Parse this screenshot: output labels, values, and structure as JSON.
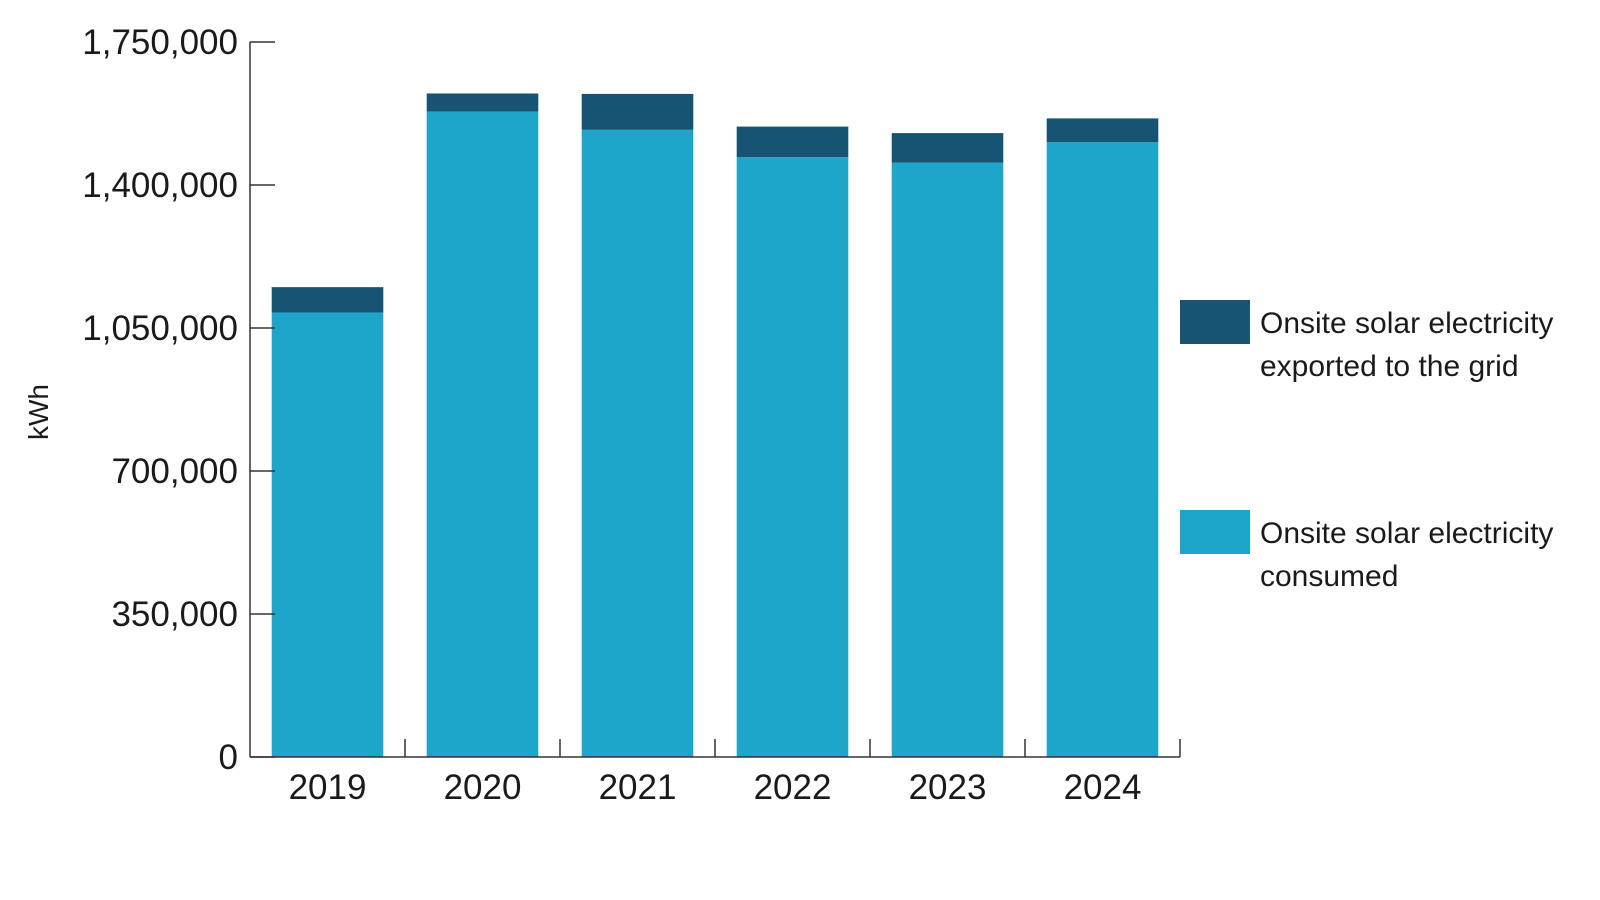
{
  "chart_data": {
    "type": "bar",
    "stacked": true,
    "categories": [
      "2019",
      "2020",
      "2021",
      "2022",
      "2023",
      "2024"
    ],
    "series": [
      {
        "name": "Onsite solar electricity consumed",
        "values": [
          1088000,
          1580000,
          1535000,
          1468000,
          1455000,
          1505000
        ],
        "color": "#1ea5ca"
      },
      {
        "name": "Onsite solar electricity exported to the grid",
        "values": [
          62000,
          44000,
          88000,
          75000,
          72000,
          58000
        ],
        "color": "#175474"
      }
    ],
    "ylabel": "kWh",
    "xlabel": "",
    "title": "",
    "ylim": [
      0,
      1750000
    ],
    "yticks": [
      0,
      350000,
      700000,
      1050000,
      1400000,
      1750000
    ],
    "ytick_labels": [
      "0",
      "350,000",
      "700,000",
      "1,050,000",
      "1,400,000",
      "1,750,000"
    ],
    "legend_position": "right",
    "grid": false
  },
  "legend": {
    "items": [
      {
        "label": "Onsite solar electricity exported to the grid",
        "color": "#175474"
      },
      {
        "label": "Onsite solar electricity consumed",
        "color": "#1ea5ca"
      }
    ]
  }
}
